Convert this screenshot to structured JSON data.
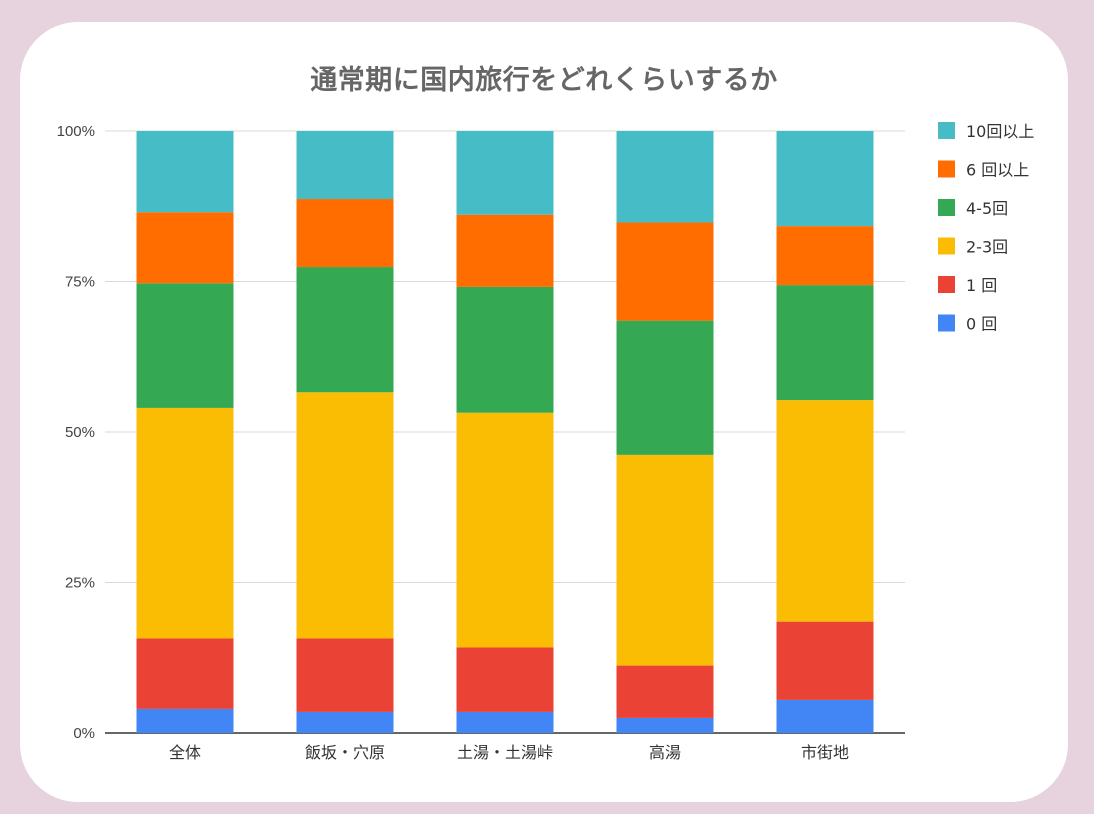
{
  "chart_data": {
    "type": "bar",
    "stacked": true,
    "normalized": true,
    "title": "通常期に国内旅行をどれくらいするか",
    "xlabel": "",
    "ylabel": "",
    "categories": [
      "全体",
      "飯坂・穴原",
      "土湯・土湯峠",
      "高湯",
      "市街地"
    ],
    "y_ticks": [
      "0%",
      "25%",
      "50%",
      "75%",
      "100%"
    ],
    "ylim": [
      0,
      100
    ],
    "grid": true,
    "legend_position": "right",
    "series": [
      {
        "name": "0 回",
        "color": "#4285F4",
        "values": [
          4.0,
          3.5,
          3.5,
          2.5,
          5.5
        ]
      },
      {
        "name": "1 回",
        "color": "#EA4335",
        "values": [
          11.7,
          12.2,
          10.7,
          8.7,
          13.0
        ]
      },
      {
        "name": "2-3回",
        "color": "#FBBC04",
        "values": [
          38.3,
          40.9,
          39.0,
          35.0,
          36.8
        ]
      },
      {
        "name": "4-5回",
        "color": "#34A853",
        "values": [
          20.7,
          20.8,
          20.9,
          22.3,
          19.1
        ]
      },
      {
        "name": " 6 回以上",
        "color": "#FF6D01",
        "values": [
          11.8,
          11.3,
          12.0,
          16.3,
          9.8
        ]
      },
      {
        "name": "10回以上",
        "color": "#46BDC6",
        "values": [
          13.5,
          11.3,
          13.9,
          15.2,
          15.8
        ]
      }
    ]
  }
}
